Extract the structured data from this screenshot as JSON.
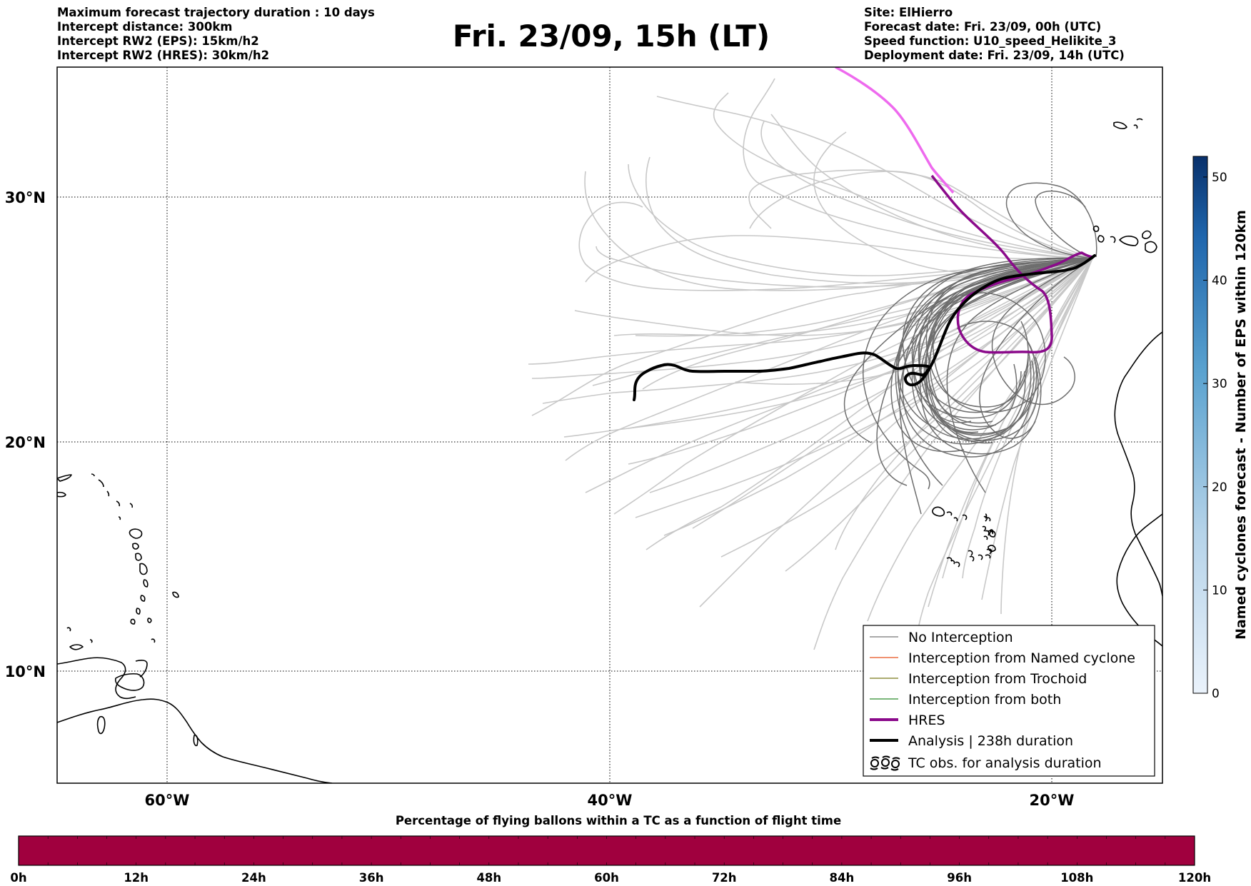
{
  "header": {
    "left": [
      "Maximum forecast trajectory duration : 10 days",
      "Intercept distance: 300km",
      "Intercept RW2 (EPS):  15km/h2",
      "Intercept RW2 (HRES): 30km/h2"
    ],
    "title": "Fri. 23/09, 15h (LT)",
    "right": [
      "Site: ElHierro",
      "Forecast date: Fri. 23/09, 00h (UTC)",
      "Speed function: U10_speed_Helikite_3",
      "Deployment date: Fri. 23/09, 14h (UTC)"
    ]
  },
  "map": {
    "lat_labels": [
      "30°N",
      "20°N",
      "10°N"
    ],
    "lon_labels": [
      "60°W",
      "40°W",
      "20°W"
    ],
    "extent": {
      "lon_min": -65,
      "lon_max": -15,
      "lat_min": 5,
      "lat_max": 35.5
    },
    "legend": [
      {
        "label": "No Interception",
        "color": "#777777",
        "style": "thin"
      },
      {
        "label": "Interception from Named cyclone",
        "color": "#e8501c",
        "style": "thin"
      },
      {
        "label": "Interception from Trochoid",
        "color": "#7a7a1a",
        "style": "thin"
      },
      {
        "label": "Interception from both",
        "color": "#2a8a2a",
        "style": "thin"
      },
      {
        "label": "HRES",
        "color": "#8b0a8b",
        "style": "thick"
      },
      {
        "label": "Analysis | 238h duration",
        "color": "#000000",
        "style": "thick"
      },
      {
        "label": "TC obs. for analysis duration",
        "color": "#000000",
        "style": "symbol"
      }
    ],
    "colors": {
      "eps_light": "#c8c8c8",
      "eps_dark": "#6e6e6e",
      "hres_early": "#ee6aee",
      "hres": "#8b0a8b",
      "analysis": "#000000"
    }
  },
  "colorbar_right": {
    "label": "Named cyclones forecast - Number of EPS within 120km",
    "ticks": [
      "0",
      "10",
      "20",
      "30",
      "40",
      "50"
    ],
    "min": 0,
    "max": 52,
    "color_low": "#e8f0fa",
    "color_high": "#08306b"
  },
  "colorbar_bottom": {
    "title": "Percentage of flying ballons within a TC as a function of flight time",
    "ticks": [
      "0h",
      "12h",
      "24h",
      "36h",
      "48h",
      "60h",
      "72h",
      "84h",
      "96h",
      "108h",
      "120h"
    ],
    "fill": "#a0003e"
  }
}
